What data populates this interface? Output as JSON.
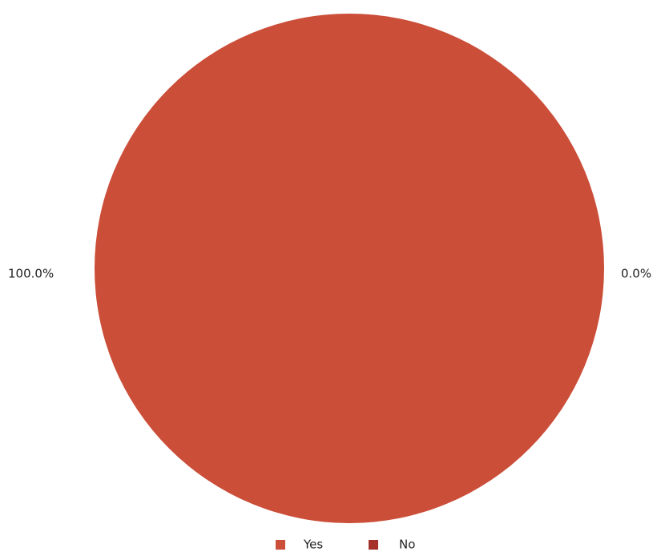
{
  "chart_data": {
    "type": "pie",
    "categories": [
      "Yes",
      "No"
    ],
    "values": [
      100.0,
      0.0
    ],
    "labels": [
      "100.0%",
      "0.0%"
    ],
    "colors": [
      "#cb4e39",
      "#a6312b"
    ],
    "legend": {
      "position": "bottom-center",
      "entries": [
        "Yes",
        "No"
      ]
    }
  }
}
